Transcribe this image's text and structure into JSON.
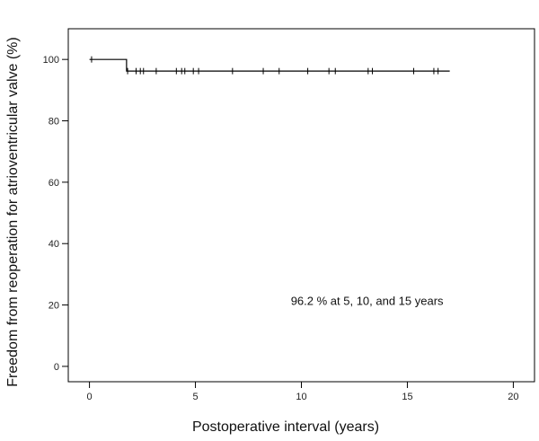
{
  "chart_data": {
    "type": "line",
    "subtype": "kaplan-meier",
    "title": "",
    "xlabel": "Postoperative interval (years)",
    "ylabel": "Freedom from reoperation for atrioventricular valve (%)",
    "xlim": [
      -1,
      21
    ],
    "ylim": [
      -5,
      110
    ],
    "xticks": [
      0,
      5,
      10,
      15,
      20
    ],
    "yticks": [
      0,
      20,
      40,
      60,
      80,
      100
    ],
    "grid": false,
    "legend": "none",
    "series": [
      {
        "steps": [
          {
            "x": 0,
            "y": 100
          },
          {
            "x": 1.75,
            "y": 96.2
          },
          {
            "x": 17,
            "y": 96.2
          }
        ],
        "censored": [
          {
            "x": 0.1,
            "y": 100
          },
          {
            "x": 1.8,
            "y": 96.2
          },
          {
            "x": 2.2,
            "y": 96.2
          },
          {
            "x": 2.4,
            "y": 96.2
          },
          {
            "x": 2.55,
            "y": 96.2
          },
          {
            "x": 3.15,
            "y": 96.2
          },
          {
            "x": 4.1,
            "y": 96.2
          },
          {
            "x": 4.35,
            "y": 96.2
          },
          {
            "x": 4.5,
            "y": 96.2
          },
          {
            "x": 4.9,
            "y": 96.2
          },
          {
            "x": 5.15,
            "y": 96.2
          },
          {
            "x": 6.75,
            "y": 96.2
          },
          {
            "x": 8.2,
            "y": 96.2
          },
          {
            "x": 8.95,
            "y": 96.2
          },
          {
            "x": 10.3,
            "y": 96.2
          },
          {
            "x": 11.3,
            "y": 96.2
          },
          {
            "x": 11.6,
            "y": 96.2
          },
          {
            "x": 13.15,
            "y": 96.2
          },
          {
            "x": 13.35,
            "y": 96.2
          },
          {
            "x": 15.3,
            "y": 96.2
          },
          {
            "x": 16.25,
            "y": 96.2
          },
          {
            "x": 16.45,
            "y": 96.2
          }
        ]
      }
    ],
    "annotations": [
      {
        "text": "96.2 % at 5, 10, and 15 years",
        "x": 13.1,
        "y": 20
      }
    ]
  }
}
